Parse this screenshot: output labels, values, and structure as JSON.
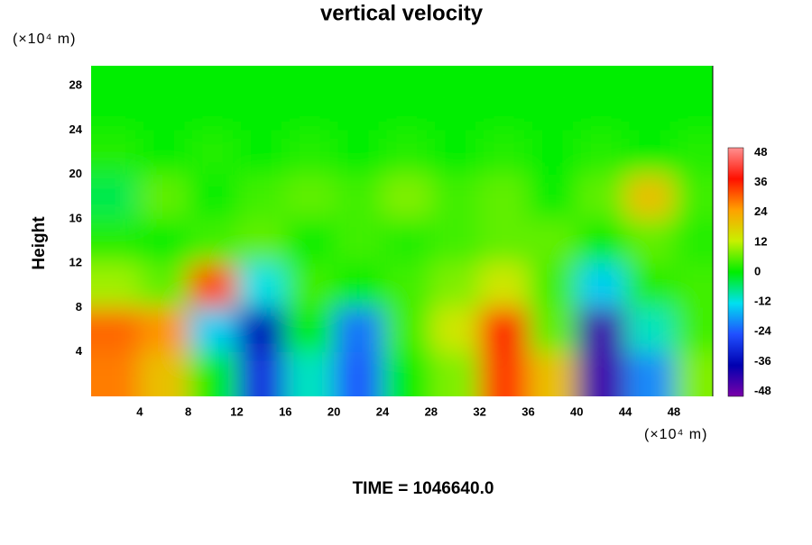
{
  "chart_data": {
    "type": "contour",
    "title": "vertical velocity",
    "ylabel": "Height",
    "x_unit": "(×10⁴ m)",
    "y_unit": "(×10⁴ m)",
    "footer": "TIME = 1046640.0",
    "x": [
      2,
      6,
      10,
      14,
      18,
      22,
      26,
      30,
      34,
      38,
      42,
      46,
      50
    ],
    "y": [
      2,
      6,
      10,
      14,
      18,
      22,
      26,
      30
    ],
    "z": [
      [
        28,
        20,
        0,
        -30,
        -10,
        -24,
        0,
        8,
        34,
        20,
        -44,
        -20,
        8
      ],
      [
        30,
        26,
        -14,
        -36,
        0,
        -22,
        4,
        14,
        36,
        6,
        -44,
        -10,
        4
      ],
      [
        10,
        6,
        32,
        -12,
        4,
        0,
        4,
        8,
        14,
        4,
        -14,
        2,
        4
      ],
      [
        2,
        0,
        4,
        6,
        0,
        4,
        2,
        4,
        6,
        6,
        0,
        6,
        2
      ],
      [
        -4,
        6,
        0,
        4,
        6,
        4,
        8,
        4,
        6,
        0,
        6,
        20,
        4
      ],
      [
        2,
        0,
        2,
        0,
        2,
        0,
        2,
        0,
        2,
        0,
        2,
        0,
        2
      ],
      [
        0,
        0,
        0,
        0,
        0,
        0,
        0,
        0,
        0,
        0,
        0,
        0,
        0
      ],
      [
        0,
        0,
        0,
        0,
        0,
        0,
        0,
        0,
        0,
        0,
        0,
        0,
        0
      ]
    ],
    "xlim": [
      0,
      51.2
    ],
    "ylim": [
      0,
      29.8
    ],
    "xticks": [
      4,
      8,
      12,
      16,
      20,
      24,
      28,
      32,
      36,
      40,
      44,
      48
    ],
    "yticks": [
      4,
      8,
      12,
      16,
      20,
      24,
      28
    ],
    "clim": [
      -50,
      50
    ],
    "cticks": [
      48,
      36,
      24,
      12,
      0,
      -12,
      -24,
      -36,
      -48
    ],
    "colorscale": [
      "#7a00a8",
      "#0000b0",
      "#2050ff",
      "#00e0f0",
      "#00ee00",
      "#c8f000",
      "#ffa000",
      "#ff1000",
      "#ff9090"
    ]
  }
}
